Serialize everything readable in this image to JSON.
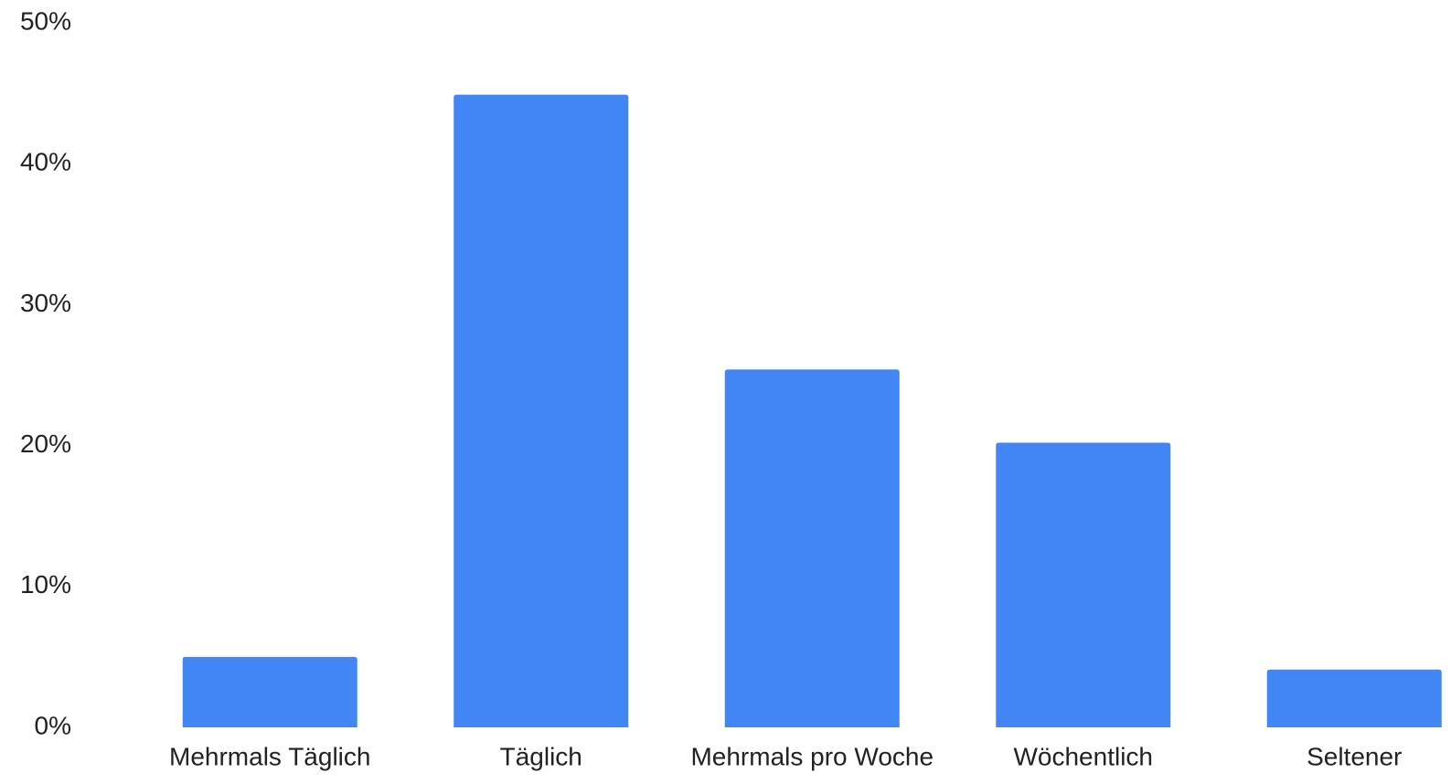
{
  "chart_data": {
    "type": "bar",
    "categories": [
      "Mehrmals Täglich",
      "Täglich",
      "Mehrmals pro Woche",
      "Wöchentlich",
      "Seltener"
    ],
    "values": [
      5,
      44.9,
      25.4,
      20.2,
      4.1
    ],
    "color": "#4285f4",
    "ylim": [
      0,
      50
    ],
    "yticks": [
      {
        "value": 0,
        "label": "0%"
      },
      {
        "value": 10,
        "label": "10%"
      },
      {
        "value": 20,
        "label": "20%"
      },
      {
        "value": 30,
        "label": "30%"
      },
      {
        "value": 40,
        "label": "40%"
      },
      {
        "value": 50,
        "label": "50%"
      }
    ],
    "grid": false
  }
}
